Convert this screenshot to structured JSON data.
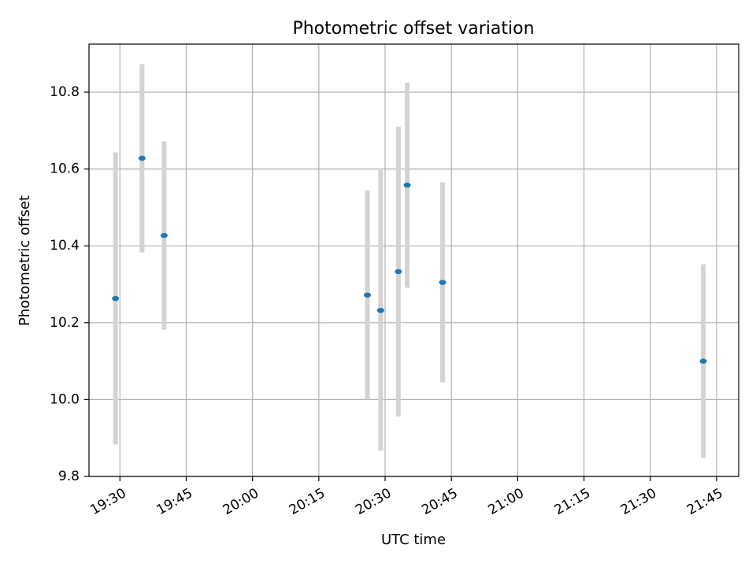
{
  "chart_data": {
    "type": "scatter",
    "title": "Photometric offset variation",
    "xlabel": "UTC time",
    "ylabel": "Photometric offset",
    "x_axis_type": "time",
    "xlim": [
      "19:23",
      "21:50"
    ],
    "ylim": [
      9.8,
      10.925
    ],
    "x_ticks": [
      "19:30",
      "19:45",
      "20:00",
      "20:15",
      "20:30",
      "20:45",
      "21:00",
      "21:15",
      "21:30",
      "21:45"
    ],
    "y_ticks": [
      9.8,
      10.0,
      10.2,
      10.4,
      10.6,
      10.8
    ],
    "y_tick_labels": [
      "9.8",
      "10.0",
      "10.2",
      "10.4",
      "10.6",
      "10.8"
    ],
    "grid": true,
    "marker_color": "#1f77b4",
    "errorbar_color": "#d3d3d3",
    "points": [
      {
        "time": "19:29",
        "y": 10.263,
        "err": 0.38
      },
      {
        "time": "19:35",
        "y": 10.628,
        "err": 0.245
      },
      {
        "time": "19:40",
        "y": 10.427,
        "err": 0.245
      },
      {
        "time": "20:26",
        "y": 10.272,
        "err": 0.272
      },
      {
        "time": "20:29",
        "y": 10.232,
        "err": 0.365
      },
      {
        "time": "20:33",
        "y": 10.333,
        "err": 0.377
      },
      {
        "time": "20:35",
        "y": 10.558,
        "err": 0.267
      },
      {
        "time": "20:43",
        "y": 10.305,
        "err": 0.26
      },
      {
        "time": "21:42",
        "y": 10.1,
        "err": 0.252
      }
    ]
  }
}
